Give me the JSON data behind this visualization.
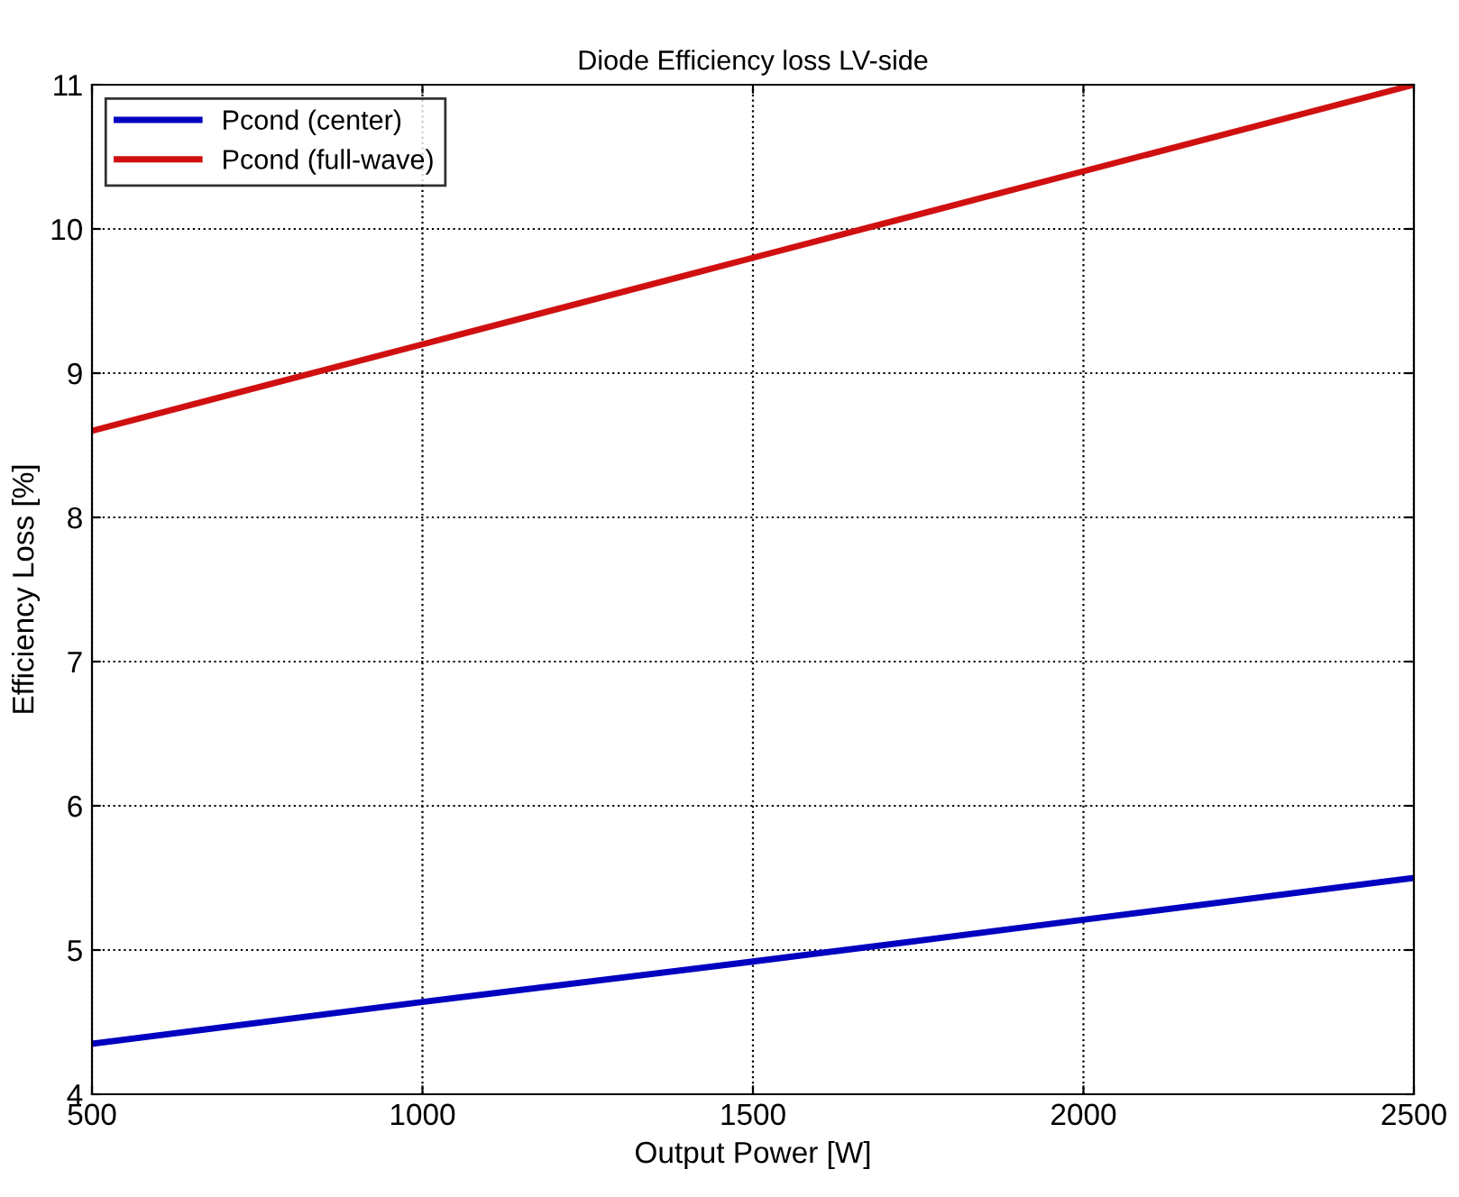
{
  "chart_data": {
    "type": "line",
    "title": "Diode Efficiency loss LV-side",
    "xlabel": "Output Power [W]",
    "ylabel": "Efficiency Loss [%]",
    "x": [
      500,
      1000,
      1500,
      2000,
      2500
    ],
    "series": [
      {
        "name": "Pcond (center)",
        "color": "#0000c0",
        "values": [
          4.35,
          4.64,
          4.92,
          5.21,
          5.5
        ]
      },
      {
        "name": "Pcond (full-wave)",
        "color": "#d01010",
        "values": [
          8.6,
          9.2,
          9.8,
          10.4,
          11.0
        ]
      }
    ],
    "xlim": [
      500,
      2500
    ],
    "xticks": [
      500,
      1000,
      1500,
      2000,
      2500
    ],
    "ylim": [
      4,
      11
    ],
    "yticks": [
      4,
      5,
      6,
      7,
      8,
      9,
      10,
      11
    ],
    "grid": true,
    "legend": "top left",
    "line_style": "solid",
    "marker": "none"
  }
}
